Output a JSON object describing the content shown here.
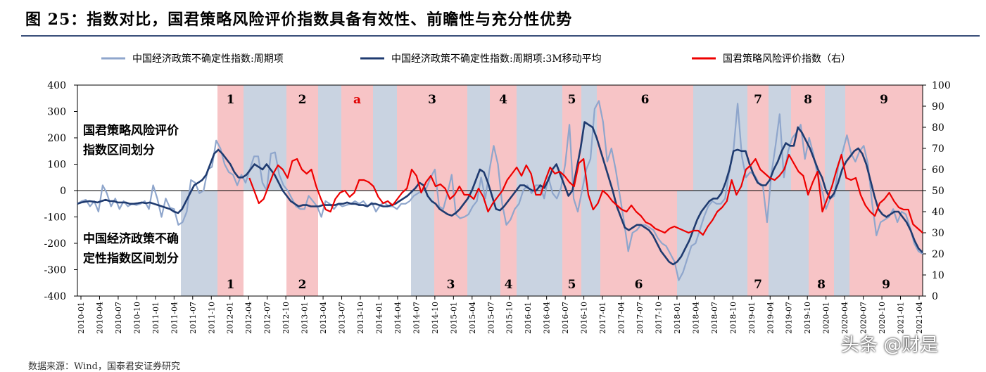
{
  "title": "图 25：指数对比，国君策略风险评价指数具备有效性、前瞻性与充分性优势",
  "footer_text": "数据来源：Wind，国泰君安证券研究",
  "watermark": "头条 @财是",
  "colors": {
    "epu": "#8fa6cc",
    "epu_ma": "#1f3b70",
    "risk": "#ee0000",
    "shade_red": "#f7c4c6",
    "shade_blue": "#c9d3e1",
    "rule": "#3a4f7a"
  },
  "chart_data": {
    "type": "line",
    "legend_position": "top",
    "grid": false,
    "x_labels": [
      "2010-01",
      "2010-04",
      "2010-07",
      "2010-10",
      "2011-01",
      "2011-04",
      "2011-07",
      "2011-10",
      "2012-01",
      "2012-04",
      "2012-07",
      "2012-10",
      "2013-01",
      "2013-04",
      "2013-07",
      "2013-10",
      "2014-01",
      "2014-04",
      "2014-07",
      "2014-10",
      "2015-01",
      "2015-04",
      "2015-07",
      "2015-10",
      "2016-01",
      "2016-04",
      "2016-07",
      "2016-10",
      "2017-01",
      "2017-04",
      "2017-07",
      "2017-10",
      "2018-01",
      "2018-04",
      "2018-07",
      "2018-10",
      "2019-01",
      "2019-04",
      "2019-07",
      "2019-10",
      "2020-01",
      "2020-04",
      "2020-07",
      "2020-10",
      "2021-01",
      "2021-04"
    ],
    "y_left": {
      "min": -400,
      "max": 400,
      "ticks": [
        -400,
        -300,
        -200,
        -100,
        0,
        100,
        200,
        300,
        400
      ]
    },
    "y_right": {
      "min": 0,
      "max": 100,
      "ticks": [
        0,
        10,
        20,
        30,
        40,
        50,
        60,
        70,
        80,
        90,
        100
      ]
    },
    "series": [
      {
        "name": "中国经济政策不确定性指数:周期项",
        "axis": "left",
        "key": "epu",
        "values": [
          -50,
          -40,
          -35,
          -60,
          -40,
          -80,
          20,
          -10,
          -60,
          -30,
          -70,
          -40,
          -60,
          -50,
          -55,
          -50,
          -40,
          -70,
          20,
          -30,
          -100,
          -30,
          -65,
          -70,
          -130,
          -120,
          -80,
          40,
          30,
          -10,
          0,
          80,
          90,
          190,
          160,
          100,
          70,
          60,
          20,
          60,
          30,
          80,
          130,
          130,
          30,
          0,
          140,
          145,
          60,
          20,
          0,
          -30,
          -60,
          -70,
          -70,
          -20,
          -40,
          -60,
          -100,
          -40,
          -50,
          -70,
          -50,
          -60,
          -55,
          -50,
          -40,
          -50,
          -40,
          -60,
          -45,
          -80,
          -55,
          -45,
          -60,
          -60,
          -70,
          -50,
          -50,
          -40,
          -20,
          -10,
          0,
          10,
          50,
          80,
          -60,
          -70,
          -10,
          60,
          -90,
          -105,
          -100,
          -90,
          -60,
          -40,
          50,
          -30,
          80,
          170,
          100,
          -50,
          -130,
          -110,
          -70,
          -50,
          0,
          20,
          -10,
          20,
          20,
          -30,
          50,
          -10,
          -30,
          10,
          100,
          250,
          -30,
          -80,
          0,
          80,
          120,
          310,
          340,
          260,
          110,
          160,
          80,
          -20,
          -120,
          -230,
          -160,
          -150,
          -130,
          -130,
          -140,
          -150,
          -180,
          -200,
          -210,
          -240,
          -270,
          -340,
          -310,
          -260,
          -210,
          -200,
          -150,
          -100,
          -60,
          -40,
          -50,
          -50,
          -30,
          70,
          150,
          330,
          130,
          50,
          70,
          60,
          30,
          20,
          -120,
          60,
          170,
          290,
          50,
          150,
          200,
          220,
          250,
          120,
          200,
          140,
          60,
          10,
          -70,
          -30,
          -20,
          100,
          150,
          210,
          140,
          110,
          150,
          170,
          100,
          -50,
          -170,
          -120,
          -110,
          -100,
          -70,
          -120,
          -80,
          -90,
          -140,
          -200,
          -230,
          -240
        ]
      },
      {
        "name": "中国经济政策不确定性指数:周期项:3M移动平均",
        "axis": "left",
        "key": "epu_ma",
        "values": [
          -50,
          -45,
          -42,
          -40,
          -42,
          -45,
          -40,
          -35,
          -40,
          -40,
          -45,
          -45,
          -45,
          -50,
          -50,
          -48,
          -45,
          -48,
          -45,
          -50,
          -55,
          -60,
          -65,
          -70,
          -80,
          -85,
          -70,
          -40,
          -10,
          20,
          30,
          40,
          60,
          100,
          140,
          155,
          140,
          120,
          100,
          70,
          50,
          50,
          60,
          80,
          100,
          90,
          80,
          100,
          80,
          60,
          30,
          0,
          -20,
          -40,
          -50,
          -60,
          -55,
          -55,
          -60,
          -60,
          -60,
          -55,
          -55,
          -55,
          -55,
          -50,
          -50,
          -45,
          -50,
          -50,
          -55,
          -55,
          -60,
          -50,
          -50,
          -55,
          -60,
          -60,
          -55,
          -50,
          -40,
          -30,
          -20,
          -5,
          10,
          30,
          20,
          -20,
          -40,
          -50,
          -70,
          -80,
          -90,
          -95,
          -85,
          -70,
          -50,
          -30,
          0,
          40,
          80,
          70,
          30,
          -20,
          -70,
          -75,
          -60,
          -40,
          -20,
          0,
          20,
          20,
          10,
          0,
          0,
          20,
          10,
          40,
          80,
          100,
          60,
          20,
          -20,
          0,
          80,
          160,
          260,
          250,
          240,
          200,
          150,
          100,
          50,
          0,
          -60,
          -100,
          -140,
          -150,
          -140,
          -130,
          -130,
          -140,
          -150,
          -170,
          -200,
          -230,
          -250,
          -270,
          -280,
          -270,
          -250,
          -220,
          -190,
          -150,
          -110,
          -80,
          -60,
          -40,
          -30,
          -30,
          -10,
          30,
          80,
          150,
          155,
          150,
          150,
          100,
          60,
          30,
          20,
          20,
          40,
          80,
          110,
          150,
          180,
          170,
          170,
          240,
          220,
          190,
          160,
          120,
          80,
          50,
          0,
          -30,
          -10,
          30,
          80,
          110,
          130,
          150,
          160,
          140,
          100,
          40,
          -20,
          -70,
          -90,
          -100,
          -90,
          -80,
          -80,
          -100,
          -120,
          -150,
          -190,
          -220,
          -235
        ]
      },
      {
        "name": "国君策略风险评价指数（右）",
        "axis": "right",
        "key": "risk",
        "values": [
          null,
          null,
          null,
          null,
          null,
          null,
          null,
          null,
          null,
          null,
          null,
          null,
          null,
          null,
          null,
          null,
          null,
          null,
          null,
          null,
          null,
          null,
          null,
          null,
          null,
          null,
          null,
          null,
          null,
          null,
          null,
          null,
          null,
          null,
          null,
          null,
          56,
          50,
          44,
          46,
          52,
          58,
          62,
          60,
          56,
          64,
          65,
          60,
          58,
          60,
          52,
          46,
          41,
          40,
          46,
          49,
          50,
          47,
          49,
          55,
          55,
          54,
          52,
          47,
          44,
          45,
          43,
          46,
          49,
          51,
          60,
          57,
          49,
          54,
          57,
          52,
          53,
          51,
          46,
          48,
          52,
          48,
          48,
          46,
          51,
          47,
          40,
          44,
          47,
          50,
          55,
          58,
          61,
          57,
          62,
          58,
          48,
          48,
          55,
          61,
          58,
          59,
          57,
          54,
          52,
          63,
          65,
          48,
          41,
          44,
          50,
          48,
          45,
          43,
          41,
          40,
          43,
          40,
          38,
          35,
          34,
          32,
          31,
          30,
          32,
          33,
          32,
          31,
          30,
          31,
          31,
          29,
          33,
          36,
          40,
          42,
          45,
          55,
          48,
          52,
          60,
          62,
          65,
          60,
          58,
          56,
          55,
          57,
          60,
          67,
          63,
          59,
          57,
          48,
          54,
          59,
          40,
          46,
          52,
          60,
          67,
          56,
          55,
          56,
          48,
          43,
          40,
          38,
          44,
          46,
          49,
          45,
          42,
          41,
          41,
          34,
          32,
          30
        ]
      }
    ],
    "zones_top": [
      {
        "label": "1",
        "shade": "red"
      },
      {
        "label": "",
        "shade": "blue"
      },
      {
        "label": "2",
        "shade": "red"
      },
      {
        "label": "",
        "shade": "blue"
      },
      {
        "label": "a",
        "shade": "red"
      },
      {
        "label": "",
        "shade": "blue"
      },
      {
        "label": "3",
        "shade": "red"
      },
      {
        "label": "",
        "shade": "blue"
      },
      {
        "label": "4",
        "shade": "red"
      },
      {
        "label": "",
        "shade": "blue"
      },
      {
        "label": "5",
        "shade": "red"
      },
      {
        "label": "",
        "shade": "blue"
      },
      {
        "label": "6",
        "shade": "red"
      },
      {
        "label": "",
        "shade": "blue"
      },
      {
        "label": "7",
        "shade": "red"
      },
      {
        "label": "",
        "shade": "blue"
      },
      {
        "label": "8",
        "shade": "red"
      },
      {
        "label": "",
        "shade": "blue"
      },
      {
        "label": "9",
        "shade": "red"
      }
    ],
    "zones_bottom": [
      {
        "label": "",
        "shade": "blue"
      },
      {
        "label": "1",
        "shade": "red"
      },
      {
        "label": "2",
        "shade": "red"
      },
      {
        "label": "",
        "shade": "blue"
      },
      {
        "label": "3",
        "shade": "red"
      },
      {
        "label": "",
        "shade": "blue"
      },
      {
        "label": "4",
        "shade": "red"
      },
      {
        "label": "",
        "shade": "blue"
      },
      {
        "label": "5",
        "shade": "red"
      },
      {
        "label": "",
        "shade": "blue"
      },
      {
        "label": "6",
        "shade": "red"
      },
      {
        "label": "",
        "shade": "blue"
      },
      {
        "label": "7",
        "shade": "red"
      },
      {
        "label": "",
        "shade": "blue"
      },
      {
        "label": "8",
        "shade": "red"
      },
      {
        "label": "",
        "shade": "blue"
      },
      {
        "label": "9",
        "shade": "red"
      }
    ],
    "annotations": [
      "国君策略风险评价",
      "指数区间划分",
      "中国经济政策不确",
      "定性指数区间划分"
    ]
  }
}
